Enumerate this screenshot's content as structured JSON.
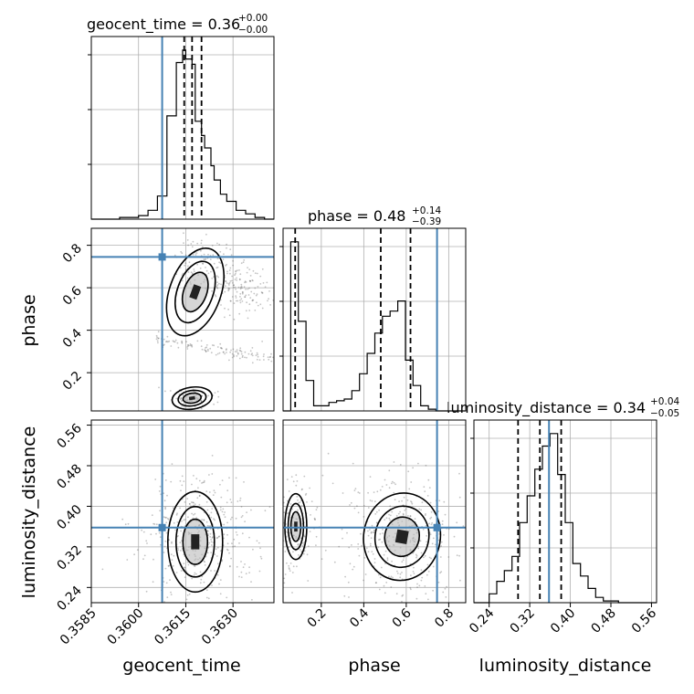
{
  "colors": {
    "truth": "#4682b4",
    "hist": "#000000",
    "grid": "#b0b0b0",
    "scatter": "#555555"
  },
  "chart_data": {
    "type": "corner",
    "grid": true,
    "parameters": [
      "geocent_time",
      "phase",
      "luminosity_distance"
    ],
    "truths": {
      "geocent_time": 0.36075,
      "phase": 0.745,
      "luminosity_distance": 0.358
    },
    "ranges": {
      "geocent_time": [
        0.3585,
        0.3643
      ],
      "phase": [
        0.02,
        0.88
      ],
      "luminosity_distance": [
        0.21,
        0.57
      ]
    },
    "ticks": {
      "geocent_time": {
        "values": [
          0.3585,
          0.36,
          0.3615,
          0.363
        ],
        "labels": [
          "0.3585",
          "0.3600",
          "0.3615",
          "0.3630"
        ]
      },
      "phase": {
        "values": [
          0.2,
          0.4,
          0.6,
          0.8
        ],
        "labels": [
          "0.2",
          "0.4",
          "0.6",
          "0.8"
        ]
      },
      "luminosity_distance": {
        "values": [
          0.24,
          0.32,
          0.4,
          0.48,
          0.56
        ],
        "labels": [
          "0.24",
          "0.32",
          "0.40",
          "0.48",
          "0.56"
        ]
      }
    },
    "axis_labels": {
      "x": [
        "geocent_time",
        "phase",
        "luminosity_distance"
      ],
      "y": [
        "phase",
        "luminosity_distance"
      ]
    },
    "titles": [
      {
        "param": "geocent_time",
        "prefix": "geocent_time = 0.36",
        "plus": "+0.00",
        "minus": "−0.00"
      },
      {
        "param": "phase",
        "prefix": "phase = 0.48",
        "plus": "+0.14",
        "minus": "−0.39"
      },
      {
        "param": "luminosity_distance",
        "prefix": "luminosity_distance = 0.34",
        "plus": "+0.04",
        "minus": "−0.05"
      }
    ],
    "quantiles": {
      "geocent_time": [
        0.36145,
        0.3617,
        0.362
      ],
      "phase": [
        0.077,
        0.48,
        0.62
      ],
      "luminosity_distance": [
        0.297,
        0.34,
        0.382
      ]
    },
    "histograms": {
      "geocent_time": {
        "edges": [
          0.3585,
          0.3588,
          0.3591,
          0.3594,
          0.3597,
          0.36,
          0.3603,
          0.3606,
          0.3609,
          0.3612,
          0.3614,
          0.3615,
          0.3617,
          0.3618,
          0.362,
          0.3621,
          0.3623,
          0.3624,
          0.3626,
          0.3628,
          0.3631,
          0.3634,
          0.3637,
          0.364,
          0.3643
        ],
        "counts": [
          0,
          0,
          0,
          1,
          1,
          2,
          5,
          13,
          58,
          88,
          95,
          90,
          87,
          55,
          47,
          40,
          30,
          22,
          14,
          10,
          5,
          3,
          1,
          0
        ]
      },
      "phase": {
        "edges": [
          0.02,
          0.056,
          0.092,
          0.128,
          0.164,
          0.2,
          0.236,
          0.272,
          0.308,
          0.344,
          0.38,
          0.416,
          0.452,
          0.488,
          0.524,
          0.56,
          0.596,
          0.632,
          0.668,
          0.704,
          0.74,
          0.776,
          0.812,
          0.848,
          0.88
        ],
        "counts": [
          0,
          100,
          53,
          18,
          3,
          3,
          5,
          6,
          7,
          12,
          22,
          34,
          46,
          56,
          59,
          65,
          30,
          15,
          3,
          1,
          0,
          0,
          0,
          0
        ]
      },
      "luminosity_distance": {
        "edges": [
          0.21,
          0.225,
          0.24,
          0.255,
          0.27,
          0.285,
          0.3,
          0.315,
          0.33,
          0.345,
          0.36,
          0.375,
          0.39,
          0.405,
          0.42,
          0.435,
          0.45,
          0.465,
          0.48,
          0.495,
          0.51,
          0.525,
          0.54,
          0.555,
          0.57
        ],
        "counts": [
          0,
          0,
          5,
          12,
          18,
          26,
          45,
          60,
          75,
          88,
          95,
          72,
          45,
          22,
          15,
          8,
          3,
          1,
          1,
          0,
          0,
          0,
          0,
          0
        ]
      }
    }
  }
}
